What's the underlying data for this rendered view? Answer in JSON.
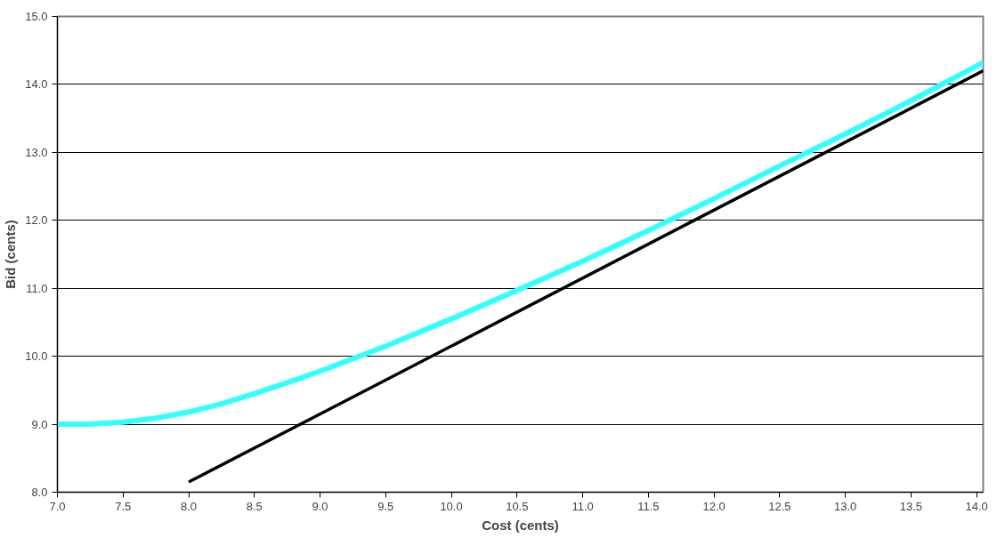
{
  "chart_data": {
    "type": "line",
    "xlabel": "Cost (cents)",
    "ylabel": "Bid (cents)",
    "xlim": [
      7.0,
      14.05
    ],
    "ylim": [
      8.0,
      15.0
    ],
    "xticks": [
      {
        "value": 7,
        "label": "7.0"
      },
      {
        "value": 7.5,
        "label": "7.5"
      },
      {
        "value": 8,
        "label": "8.0"
      },
      {
        "value": 8.5,
        "label": "8.5"
      },
      {
        "value": 9,
        "label": "9.0"
      },
      {
        "value": 9.5,
        "label": "9.5"
      },
      {
        "value": 10,
        "label": "10.0"
      },
      {
        "value": 10.5,
        "label": "10.5"
      },
      {
        "value": 11,
        "label": "11.0"
      },
      {
        "value": 11.5,
        "label": "11.5"
      },
      {
        "value": 12,
        "label": "12.0"
      },
      {
        "value": 12.5,
        "label": "12.5"
      },
      {
        "value": 13,
        "label": "13.0"
      },
      {
        "value": 13.5,
        "label": "13.5"
      },
      {
        "value": 14,
        "label": "14.0"
      }
    ],
    "yticks": [
      {
        "value": 8,
        "label": "8.0"
      },
      {
        "value": 9,
        "label": "9.0"
      },
      {
        "value": 10,
        "label": "10.0"
      },
      {
        "value": 11,
        "label": "11.0"
      },
      {
        "value": 12,
        "label": "12.0"
      },
      {
        "value": 13,
        "label": "13.0"
      },
      {
        "value": 14,
        "label": "14.0"
      },
      {
        "value": 15,
        "label": "15.0"
      }
    ],
    "grid": "y",
    "line_style": "solid",
    "series": [
      {
        "color": "#33ffff",
        "x": [
          7.0,
          7.25,
          7.5,
          7.75,
          8.0,
          8.25,
          8.5,
          8.75,
          9.0,
          9.5,
          10.0,
          10.5,
          11.0,
          11.5,
          12.0,
          12.5,
          13.0,
          13.5,
          14.05
        ],
        "values": [
          9.0,
          9.0,
          9.03,
          9.09,
          9.18,
          9.3,
          9.45,
          9.61,
          9.78,
          10.15,
          10.55,
          10.97,
          11.4,
          11.85,
          12.32,
          12.8,
          13.27,
          13.76,
          14.32
        ]
      },
      {
        "color": "#000000",
        "x": [
          8.0,
          14.05
        ],
        "values": [
          8.15,
          14.2
        ]
      }
    ]
  }
}
